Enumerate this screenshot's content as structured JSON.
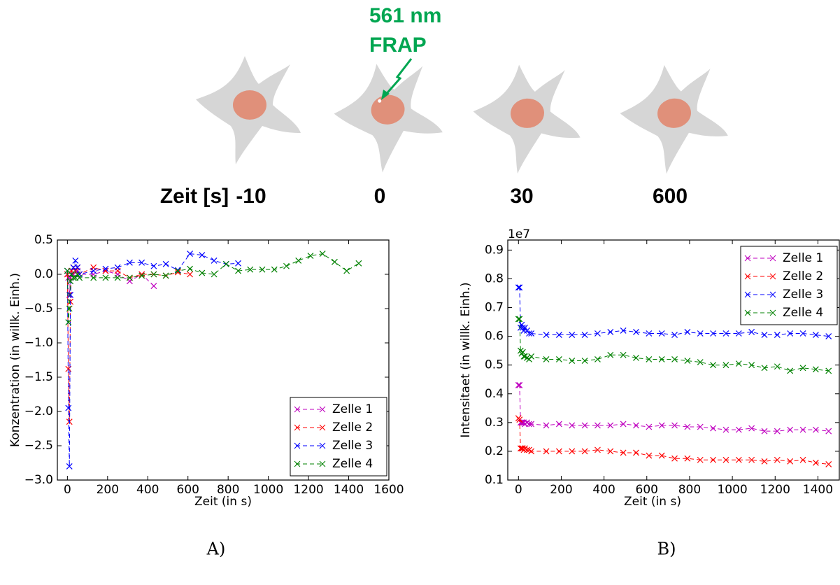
{
  "diagram": {
    "annotation": [
      "561 nm",
      "FRAP"
    ],
    "time_label": "Zeit [s]",
    "times": [
      "-10",
      "0",
      "30",
      "600"
    ]
  },
  "chart_data": [
    {
      "type": "line",
      "panel_label": "A)",
      "xlabel": "Zeit (in s)",
      "ylabel": "Konzentration (in willk. Einh.)",
      "xlim": [
        -50,
        1600
      ],
      "ylim": [
        -3.0,
        0.5
      ],
      "xticks": [
        0,
        200,
        400,
        600,
        800,
        1000,
        1200,
        1400,
        1600
      ],
      "yticks": [
        {
          "value": -3,
          "label": "−3.0"
        },
        {
          "value": -2.5,
          "label": "−2.5"
        },
        {
          "value": -2,
          "label": "−2.0"
        },
        {
          "value": -1.5,
          "label": "−1.5"
        },
        {
          "value": -1,
          "label": "−1.0"
        },
        {
          "value": -0.5,
          "label": "−0.5"
        },
        {
          "value": 0,
          "label": "0.0"
        },
        0.5
      ],
      "legend": "lower right",
      "series": [
        {
          "name": "Zelle 1",
          "color": "#bf00bf",
          "x": [
            0,
            5,
            10,
            15,
            20,
            30,
            40,
            50,
            60,
            130,
            190,
            250,
            310,
            370,
            430
          ],
          "values": [
            0.0,
            -0.05,
            -0.3,
            -0.05,
            0.0,
            0.0,
            0.05,
            0.05,
            0.0,
            0.0,
            0.05,
            0.0,
            -0.1,
            0.0,
            -0.17
          ]
        },
        {
          "name": "Zelle 2",
          "color": "#ff0000",
          "x": [
            0,
            5,
            10,
            15,
            20,
            30,
            40,
            50,
            60,
            130,
            190,
            250,
            310,
            370,
            430,
            490,
            550,
            610
          ],
          "values": [
            0.0,
            -1.38,
            -2.15,
            -0.4,
            0.05,
            0.1,
            0.05,
            0.1,
            0.0,
            0.1,
            0.05,
            0.05,
            -0.05,
            0.0,
            0.0,
            -0.02,
            0.03,
            0.0
          ]
        },
        {
          "name": "Zelle 3",
          "color": "#0000ff",
          "x": [
            0,
            5,
            10,
            15,
            20,
            30,
            40,
            50,
            60,
            130,
            190,
            250,
            310,
            370,
            430,
            490,
            550,
            610,
            670,
            730,
            790,
            850
          ],
          "values": [
            0.05,
            -1.95,
            -2.8,
            -0.3,
            0.0,
            0.1,
            0.2,
            0.1,
            0.0,
            0.05,
            0.08,
            0.1,
            0.17,
            0.17,
            0.12,
            0.15,
            0.06,
            0.3,
            0.28,
            0.2,
            0.15,
            0.16
          ]
        },
        {
          "name": "Zelle 4",
          "color": "#008000",
          "x": [
            0,
            5,
            10,
            15,
            20,
            30,
            40,
            50,
            60,
            130,
            190,
            250,
            310,
            370,
            430,
            490,
            550,
            610,
            670,
            730,
            790,
            850,
            910,
            970,
            1030,
            1090,
            1150,
            1210,
            1270,
            1330,
            1390,
            1450
          ],
          "values": [
            0.05,
            -0.7,
            -0.5,
            -0.1,
            0.0,
            -0.05,
            -0.05,
            0.0,
            -0.05,
            -0.05,
            -0.05,
            -0.05,
            -0.05,
            -0.02,
            0.0,
            -0.02,
            0.05,
            0.08,
            0.02,
            0.0,
            0.15,
            0.05,
            0.07,
            0.07,
            0.07,
            0.12,
            0.2,
            0.27,
            0.3,
            0.18,
            0.05,
            0.16
          ]
        }
      ]
    },
    {
      "type": "line",
      "panel_label": "B)",
      "xlabel": "Zeit (in s)",
      "ylabel": "Intensitaet (in willk. Einh.)",
      "y_offset_label": "1e7",
      "xlim": [
        -50,
        1500
      ],
      "ylim": [
        0.1,
        0.935
      ],
      "xticks": [
        0,
        200,
        400,
        600,
        800,
        1000,
        1200,
        1400
      ],
      "yticks": [
        0.1,
        0.2,
        0.3,
        0.4,
        0.5,
        0.6,
        0.7,
        0.8,
        0.9
      ],
      "legend": "upper right",
      "x": [
        0,
        5,
        10,
        15,
        20,
        25,
        30,
        40,
        50,
        60,
        130,
        190,
        250,
        310,
        370,
        430,
        490,
        550,
        610,
        670,
        730,
        790,
        850,
        910,
        970,
        1030,
        1090,
        1150,
        1210,
        1270,
        1330,
        1390,
        1450
      ],
      "series": [
        {
          "name": "Zelle 1",
          "color": "#bf00bf",
          "values": [
            0.43,
            0.43,
            0.3,
            0.3,
            0.3,
            0.3,
            0.295,
            0.3,
            0.295,
            0.295,
            0.29,
            0.295,
            0.29,
            0.29,
            0.29,
            0.29,
            0.295,
            0.29,
            0.285,
            0.29,
            0.29,
            0.285,
            0.285,
            0.28,
            0.275,
            0.275,
            0.28,
            0.27,
            0.27,
            0.275,
            0.275,
            0.275,
            0.27
          ]
        },
        {
          "name": "Zelle 2",
          "color": "#ff0000",
          "values": [
            0.315,
            0.31,
            0.21,
            0.21,
            0.21,
            0.205,
            0.21,
            0.205,
            0.205,
            0.2,
            0.2,
            0.2,
            0.2,
            0.2,
            0.205,
            0.2,
            0.195,
            0.195,
            0.185,
            0.185,
            0.175,
            0.175,
            0.17,
            0.17,
            0.17,
            0.17,
            0.17,
            0.165,
            0.17,
            0.165,
            0.17,
            0.16,
            0.155
          ]
        },
        {
          "name": "Zelle 3",
          "color": "#0000ff",
          "values": [
            0.77,
            0.77,
            0.63,
            0.64,
            0.63,
            0.62,
            0.63,
            0.62,
            0.61,
            0.61,
            0.605,
            0.605,
            0.605,
            0.605,
            0.61,
            0.615,
            0.62,
            0.615,
            0.61,
            0.61,
            0.605,
            0.615,
            0.61,
            0.61,
            0.61,
            0.61,
            0.615,
            0.605,
            0.605,
            0.61,
            0.61,
            0.605,
            0.6
          ]
        },
        {
          "name": "Zelle 4",
          "color": "#008000",
          "values": [
            0.66,
            0.66,
            0.55,
            0.54,
            0.545,
            0.53,
            0.53,
            0.525,
            0.52,
            0.53,
            0.52,
            0.52,
            0.515,
            0.515,
            0.52,
            0.535,
            0.535,
            0.525,
            0.52,
            0.52,
            0.52,
            0.515,
            0.51,
            0.5,
            0.5,
            0.505,
            0.5,
            0.49,
            0.495,
            0.48,
            0.49,
            0.485,
            0.48
          ]
        }
      ]
    }
  ]
}
